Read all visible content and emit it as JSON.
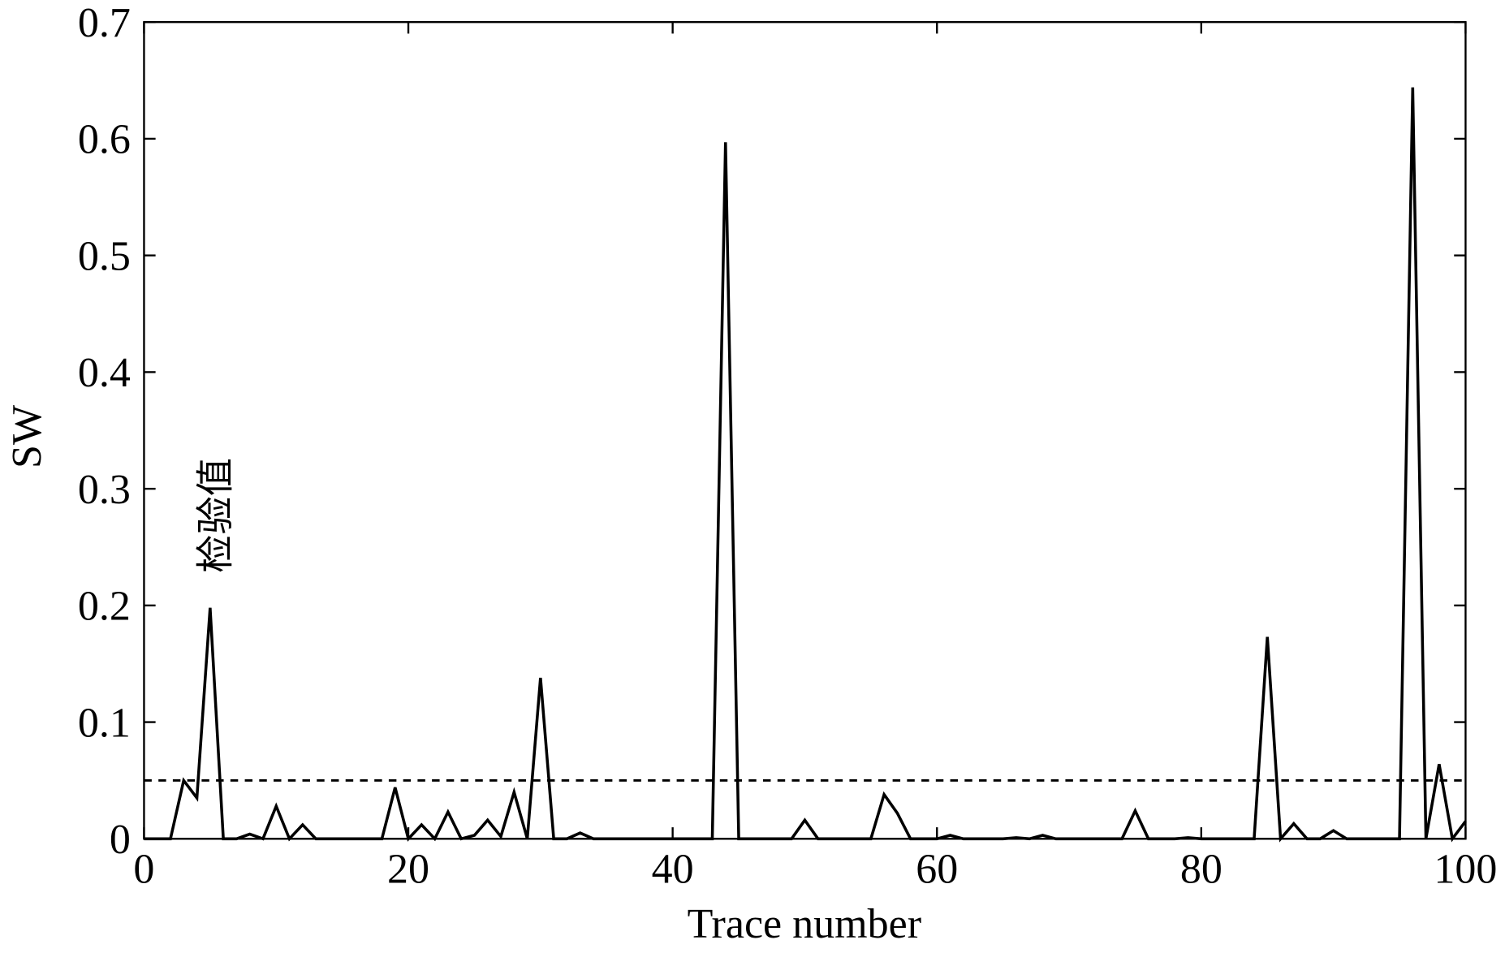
{
  "chart_data": {
    "type": "line",
    "x_label": "Trace number",
    "y_label": "SW",
    "annotation": "检验值",
    "threshold": 0.05,
    "color": "#000000",
    "x": [
      0,
      1,
      2,
      3,
      4,
      5,
      6,
      7,
      8,
      9,
      10,
      11,
      12,
      13,
      14,
      15,
      16,
      17,
      18,
      19,
      20,
      21,
      22,
      23,
      24,
      25,
      26,
      27,
      28,
      29,
      30,
      31,
      32,
      33,
      34,
      35,
      36,
      37,
      38,
      39,
      40,
      41,
      42,
      43,
      44,
      45,
      46,
      47,
      48,
      49,
      50,
      51,
      52,
      53,
      54,
      55,
      56,
      57,
      58,
      59,
      60,
      61,
      62,
      63,
      64,
      65,
      66,
      67,
      68,
      69,
      70,
      71,
      72,
      73,
      74,
      75,
      76,
      77,
      78,
      79,
      80,
      81,
      82,
      83,
      84,
      85,
      86,
      87,
      88,
      89,
      90,
      91,
      92,
      93,
      94,
      95,
      96,
      97,
      98,
      99,
      100
    ],
    "values": [
      0,
      0,
      0,
      0.05,
      0.035,
      0.198,
      0,
      0,
      0.004,
      0,
      0.028,
      0,
      0.012,
      0,
      0,
      0,
      0,
      0,
      0,
      0.044,
      0,
      0.012,
      0,
      0.023,
      0,
      0.003,
      0.016,
      0.002,
      0.04,
      0,
      0.138,
      0,
      0,
      0.005,
      0,
      0,
      0,
      0,
      0,
      0,
      0,
      0,
      0,
      0,
      0.597,
      0,
      0,
      0,
      0,
      0,
      0.016,
      0,
      0,
      0,
      0,
      0,
      0.038,
      0.022,
      0,
      0,
      0,
      0.003,
      0,
      0,
      0,
      0,
      0.001,
      0,
      0.003,
      0,
      0,
      0,
      0,
      0,
      0,
      0.024,
      0,
      0,
      0,
      0.001,
      0,
      0,
      0,
      0,
      0,
      0.173,
      0,
      0.013,
      0,
      0,
      0.007,
      0,
      0,
      0,
      0,
      0,
      0.644,
      0,
      0.064,
      0,
      0.015
    ],
    "xlim": [
      0,
      100
    ],
    "xticks": [
      0,
      20,
      40,
      60,
      80,
      100
    ],
    "ylim": [
      0,
      0.7
    ],
    "yticks": [
      0,
      0.1,
      0.2,
      0.3,
      0.4,
      0.5,
      0.6,
      0.7
    ]
  }
}
